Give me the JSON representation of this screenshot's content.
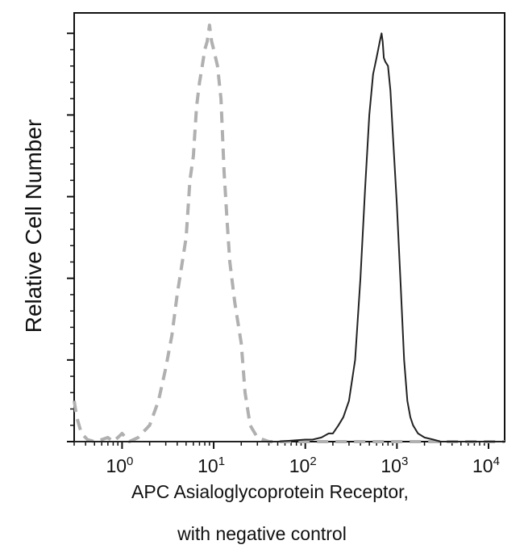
{
  "chart_data": {
    "type": "line",
    "title": "",
    "xlabel_line1": "APC  Asialoglycoprotein Receptor,",
    "xlabel_line2": "with negative control",
    "ylabel": "Relative Cell Number",
    "x_scale": "log",
    "xlim": [
      0.3,
      15000
    ],
    "ylim": [
      0,
      1.05
    ],
    "x_ticks": [
      {
        "value": 1,
        "base": "10",
        "exp": "0"
      },
      {
        "value": 10,
        "base": "10",
        "exp": "1"
      },
      {
        "value": 100,
        "base": "10",
        "exp": "2"
      },
      {
        "value": 1000,
        "base": "10",
        "exp": "3"
      },
      {
        "value": 10000,
        "base": "10",
        "exp": "4"
      }
    ],
    "y_major_ticks": [
      0,
      0.2,
      0.4,
      0.6,
      0.8,
      1.0
    ],
    "grid": false,
    "legend": "none",
    "series": [
      {
        "style": "dashed",
        "color": "#b0b0b0",
        "x": [
          0.3,
          0.32,
          0.36,
          0.42,
          0.5,
          0.6,
          0.7,
          0.8,
          0.9,
          1.0,
          1.2,
          1.5,
          2.0,
          2.5,
          3.0,
          3.5,
          4.0,
          5.0,
          5.5,
          6.0,
          6.5,
          7.0,
          7.5,
          8.0,
          8.5,
          9.0,
          9.5,
          10.0,
          11.0,
          12.0,
          13.0,
          14.0,
          15.0,
          17.0,
          20.0,
          22.0,
          25.0,
          30.0,
          40.0,
          60.0,
          100.0,
          200.0,
          500.0,
          1000.0,
          3000.0,
          10000.0,
          15000.0
        ],
        "y": [
          0.1,
          0.06,
          0.02,
          0.005,
          0.0,
          0.005,
          0.01,
          0.0,
          0.01,
          0.02,
          0.0,
          0.01,
          0.04,
          0.1,
          0.18,
          0.26,
          0.36,
          0.5,
          0.64,
          0.7,
          0.82,
          0.88,
          0.92,
          0.96,
          0.98,
          1.02,
          0.98,
          0.96,
          0.92,
          0.84,
          0.66,
          0.54,
          0.44,
          0.34,
          0.24,
          0.12,
          0.04,
          0.01,
          0.0,
          0.0,
          0.0,
          0.0,
          0.0,
          0.0,
          0.0,
          0.0,
          0.0
        ]
      },
      {
        "style": "solid",
        "color": "#222222",
        "x": [
          0.3,
          1.0,
          10.0,
          50.0,
          100.0,
          120.0,
          150.0,
          180.0,
          200.0,
          230.0,
          260.0,
          300.0,
          350.0,
          400.0,
          450.0,
          500.0,
          550.0,
          600.0,
          650.0,
          680.0,
          700.0,
          720.0,
          750.0,
          800.0,
          850.0,
          900.0,
          1000.0,
          1100.0,
          1200.0,
          1300.0,
          1400.0,
          1500.0,
          1700.0,
          2000.0,
          2500.0,
          3000.0,
          5000.0,
          15000.0
        ],
        "y": [
          0.0,
          0.0,
          0.0,
          0.0,
          0.005,
          0.005,
          0.01,
          0.02,
          0.02,
          0.04,
          0.06,
          0.1,
          0.2,
          0.4,
          0.62,
          0.8,
          0.9,
          0.94,
          0.98,
          1.0,
          0.98,
          0.94,
          0.93,
          0.92,
          0.86,
          0.76,
          0.58,
          0.38,
          0.2,
          0.1,
          0.06,
          0.04,
          0.02,
          0.01,
          0.005,
          0.0,
          0.0,
          0.0
        ]
      }
    ]
  }
}
